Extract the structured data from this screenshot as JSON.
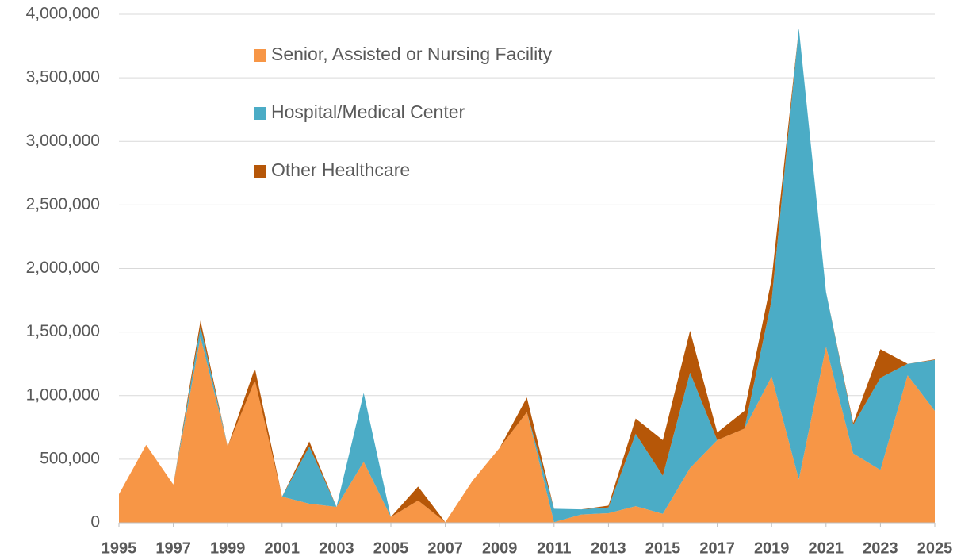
{
  "chart_data": {
    "type": "stacked_area",
    "x": [
      1995,
      1996,
      1997,
      1998,
      1999,
      2000,
      2001,
      2002,
      2003,
      2004,
      2005,
      2006,
      2007,
      2008,
      2009,
      2010,
      2011,
      2012,
      2013,
      2014,
      2015,
      2016,
      2017,
      2018,
      2019,
      2020,
      2021,
      2022,
      2023,
      2024,
      2025
    ],
    "series": [
      {
        "name": "Senior, Assisted or Nursing Facility",
        "color": "#f79646",
        "values": [
          225000,
          612000,
          300000,
          1460000,
          600000,
          1120000,
          205000,
          150000,
          125000,
          480000,
          45000,
          175000,
          5000,
          330000,
          590000,
          870000,
          5000,
          65000,
          75000,
          130000,
          70000,
          430000,
          650000,
          740000,
          1150000,
          340000,
          1385000,
          545000,
          415000,
          1160000,
          880000
        ]
      },
      {
        "name": "Hospital/Medical Center",
        "color": "#4bacc6",
        "values": [
          0,
          0,
          0,
          80000,
          0,
          0,
          0,
          450000,
          0,
          540000,
          0,
          0,
          0,
          0,
          0,
          0,
          105000,
          40000,
          45000,
          570000,
          300000,
          750000,
          0,
          0,
          600000,
          3550000,
          430000,
          225000,
          725000,
          90000,
          400000
        ]
      },
      {
        "name": "Other Healthcare",
        "color": "#b65708",
        "values": [
          0,
          0,
          0,
          50000,
          0,
          95000,
          0,
          40000,
          0,
          0,
          0,
          110000,
          0,
          0,
          0,
          115000,
          0,
          0,
          15000,
          120000,
          280000,
          330000,
          60000,
          140000,
          165000,
          0,
          0,
          15000,
          225000,
          0,
          5000
        ]
      }
    ],
    "xlim": [
      1995,
      2025
    ],
    "xticks": [
      1995,
      1997,
      1999,
      2001,
      2003,
      2005,
      2007,
      2009,
      2011,
      2013,
      2015,
      2017,
      2019,
      2021,
      2023,
      2025
    ],
    "ylim": [
      0,
      4000000
    ],
    "yticks": [
      0,
      {
        "value": 500000,
        "label": "500,000"
      },
      {
        "value": 1000000,
        "label": "1,000,000"
      },
      {
        "value": 1500000,
        "label": "1,500,000"
      },
      {
        "value": 2000000,
        "label": "2,000,000"
      },
      {
        "value": 2500000,
        "label": "2,500,000"
      },
      {
        "value": 3000000,
        "label": "3,000,000"
      },
      {
        "value": 3500000,
        "label": "3,500,000"
      },
      {
        "value": 4000000,
        "label": "4,000,000"
      }
    ],
    "grid": true,
    "legend": "top-left"
  }
}
